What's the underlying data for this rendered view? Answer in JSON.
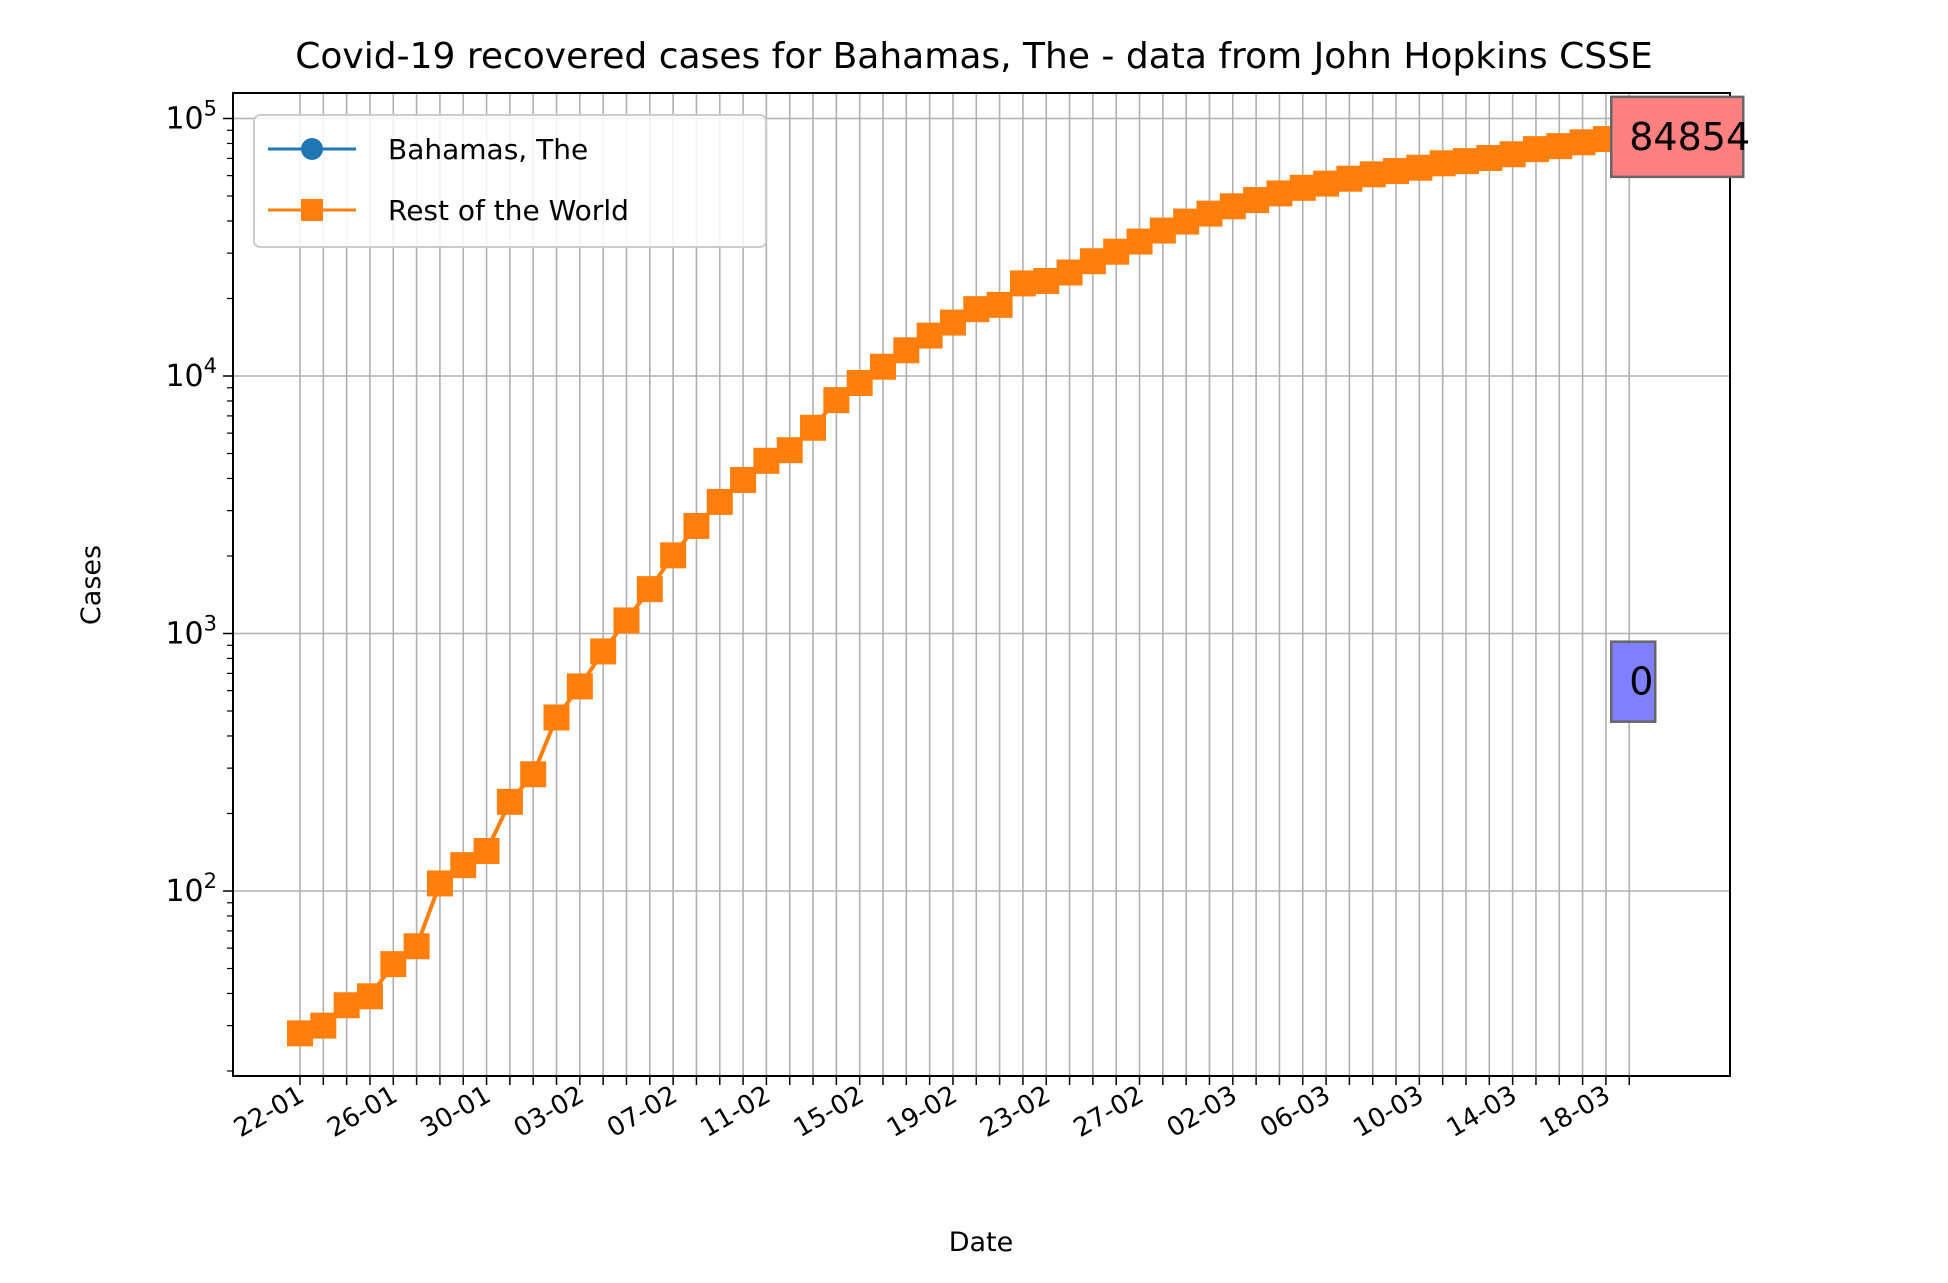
{
  "chart_data": {
    "type": "line",
    "title": "Covid-19 recovered cases for Bahamas, The - data from John Hopkins CSSE",
    "xlabel": "Date",
    "ylabel": "Cases",
    "yscale": "log",
    "ylim": [
      18,
      120000
    ],
    "grid": true,
    "legend_position": "upper-left",
    "x": [
      "22-01",
      "23-01",
      "24-01",
      "25-01",
      "26-01",
      "27-01",
      "28-01",
      "29-01",
      "30-01",
      "31-01",
      "01-02",
      "02-02",
      "03-02",
      "04-02",
      "05-02",
      "06-02",
      "07-02",
      "08-02",
      "09-02",
      "10-02",
      "11-02",
      "12-02",
      "13-02",
      "14-02",
      "15-02",
      "16-02",
      "17-02",
      "18-02",
      "19-02",
      "20-02",
      "21-02",
      "22-02",
      "23-02",
      "24-02",
      "25-02",
      "26-02",
      "27-02",
      "28-02",
      "29-02",
      "01-03",
      "02-03",
      "03-03",
      "04-03",
      "05-03",
      "06-03",
      "07-03",
      "08-03",
      "09-03",
      "10-03",
      "11-03",
      "12-03",
      "13-03",
      "14-03",
      "15-03",
      "16-03",
      "17-03",
      "18-03",
      "19-03"
    ],
    "x_tick_labels": [
      "22-01",
      "26-01",
      "30-01",
      "03-02",
      "07-02",
      "11-02",
      "15-02",
      "19-02",
      "23-02",
      "27-02",
      "02-03",
      "06-03",
      "10-03",
      "14-03",
      "18-03"
    ],
    "y_tick_labels": [
      {
        "value": 100,
        "base": "10",
        "exp": "2"
      },
      {
        "value": 1000,
        "base": "10",
        "exp": "3"
      },
      {
        "value": 10000,
        "base": "10",
        "exp": "4"
      },
      {
        "value": 100000,
        "base": "10",
        "exp": "5"
      }
    ],
    "series": [
      {
        "name": "Bahamas, The",
        "color": "#1f77b4",
        "marker": "circle",
        "values": [
          0,
          0,
          0,
          0,
          0,
          0,
          0,
          0,
          0,
          0,
          0,
          0,
          0,
          0,
          0,
          0,
          0,
          0,
          0,
          0,
          0,
          0,
          0,
          0,
          0,
          0,
          0,
          0,
          0,
          0,
          0,
          0,
          0,
          0,
          0,
          0,
          0,
          0,
          0,
          0,
          0,
          0,
          0,
          0,
          0,
          0,
          0,
          0,
          0,
          0,
          0,
          0,
          0,
          0,
          0,
          0,
          0,
          0
        ]
      },
      {
        "name": "Rest of the World",
        "color": "#ff7f0e",
        "marker": "square",
        "values": [
          28,
          30,
          36,
          39,
          52,
          61,
          107,
          126,
          143,
          222,
          284,
          472,
          623,
          852,
          1124,
          1487,
          2011,
          2616,
          3244,
          3946,
          4683,
          5150,
          6295,
          8058,
          9395,
          10865,
          12583,
          14352,
          16121,
          18177,
          18890,
          22886,
          23394,
          25227,
          27905,
          30384,
          33277,
          36711,
          39782,
          42716,
          45602,
          48229,
          51171,
          53797,
          55866,
          58359,
          60695,
          62512,
          64404,
          67003,
          68324,
          70251,
          72624,
          76034,
          78088,
          80840,
          83207,
          84854
        ]
      }
    ],
    "annotations": [
      {
        "text": "84854",
        "series": "Rest of the World",
        "box_color": "#ff8080"
      },
      {
        "text": "0",
        "series": "Bahamas, The",
        "box_color": "#8080ff"
      }
    ]
  }
}
